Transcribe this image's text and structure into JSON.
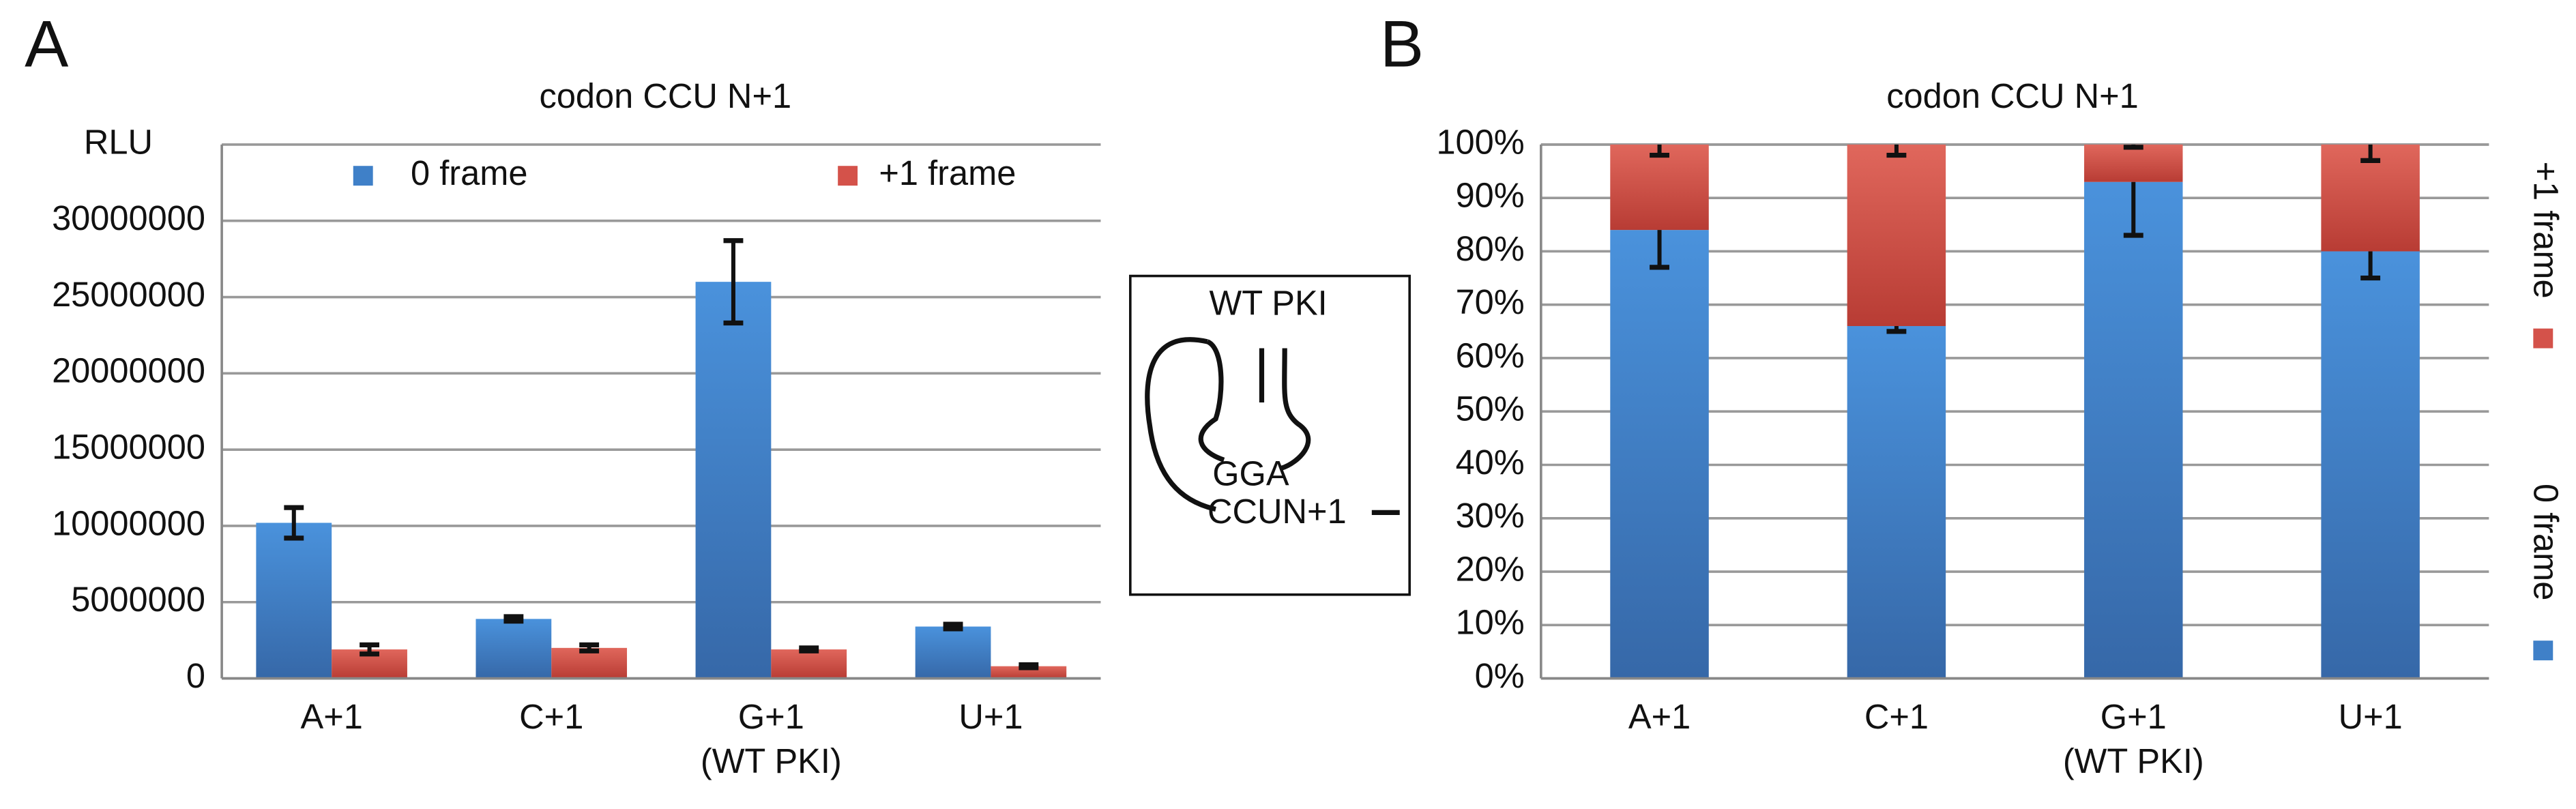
{
  "chart_data": [
    {
      "type": "grouped_bar",
      "panel_label": "A",
      "title": "codon CCU N+1",
      "ylabel": "RLU",
      "categories": [
        "A+1",
        "C+1",
        "G+1",
        "U+1"
      ],
      "category_notes": [
        null,
        null,
        "(WT PKI)",
        null
      ],
      "series": [
        {
          "name": "0 frame",
          "color": "#3f80c8",
          "values": [
            10200000,
            3900000,
            26000000,
            3400000
          ],
          "errors": [
            1000000,
            150000,
            2700000,
            150000
          ]
        },
        {
          "name": "+1 frame",
          "color": "#d4524a",
          "values": [
            1900000,
            2000000,
            1900000,
            800000
          ],
          "errors": [
            300000,
            200000,
            100000,
            100000
          ]
        }
      ],
      "ylim": [
        0,
        35000000
      ],
      "yticks": [
        0,
        5000000,
        10000000,
        15000000,
        20000000,
        25000000,
        30000000
      ],
      "grid": true,
      "legend": "top",
      "error_direction": "both"
    },
    {
      "type": "stacked_bar",
      "panel_label": "B",
      "title": "codon CCU N+1",
      "categories": [
        "A+1",
        "C+1",
        "G+1",
        "U+1"
      ],
      "category_notes": [
        null,
        null,
        "(WT PKI)",
        null
      ],
      "series": [
        {
          "name": "0 frame",
          "color": "#3f80c8",
          "values": [
            84,
            66,
            93,
            80
          ],
          "errors": [
            7,
            1,
            10,
            5
          ]
        },
        {
          "name": "+1 frame",
          "color": "#d4524a",
          "values": [
            16,
            34,
            7,
            20
          ],
          "errors": [
            2,
            2,
            0.5,
            3
          ]
        }
      ],
      "ylim": [
        0,
        100
      ],
      "yticks": [
        {
          "value": 0,
          "label": "0%"
        },
        {
          "value": 10,
          "label": "10%"
        },
        {
          "value": 20,
          "label": "20%"
        },
        {
          "value": 30,
          "label": "30%"
        },
        {
          "value": 40,
          "label": "40%"
        },
        {
          "value": 50,
          "label": "50%"
        },
        {
          "value": 60,
          "label": "60%"
        },
        {
          "value": 70,
          "label": "70%"
        },
        {
          "value": 80,
          "label": "80%"
        },
        {
          "value": 90,
          "label": "90%"
        },
        {
          "value": 100,
          "label": "100%"
        }
      ],
      "grid": true,
      "legend": "right",
      "error_direction": "minus"
    }
  ],
  "inset": {
    "title": "WT PKI",
    "labels": [
      "GGA",
      "CCUN+1"
    ]
  }
}
